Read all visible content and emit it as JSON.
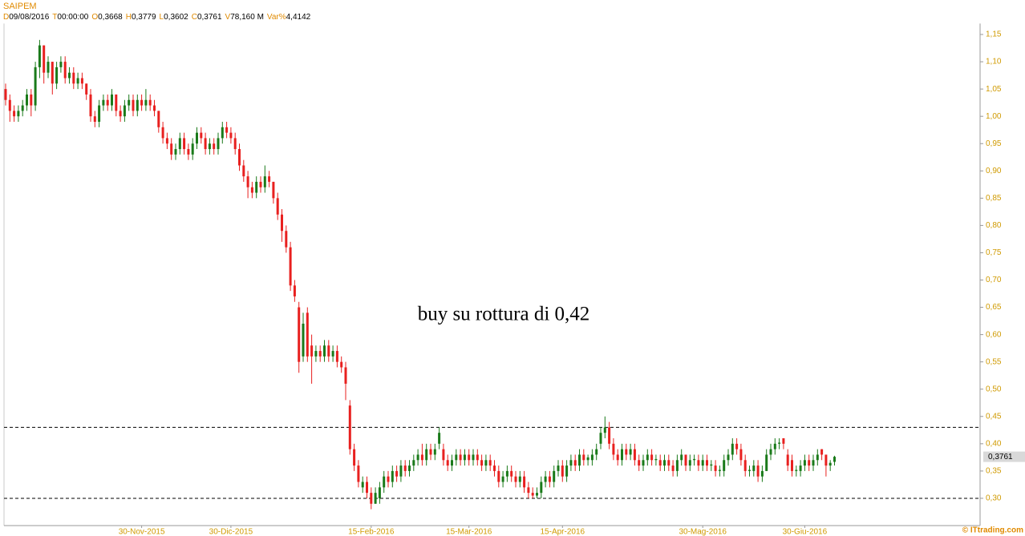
{
  "header": {
    "title": "SAIPEM",
    "info": [
      {
        "key": "D",
        "value": "09/08/2016"
      },
      {
        "key": "T",
        "value": "00:00:00"
      },
      {
        "key": "O",
        "value": "0,3668"
      },
      {
        "key": "H",
        "value": "0,3779"
      },
      {
        "key": "L",
        "value": "0,3602"
      },
      {
        "key": "C",
        "value": "0,3761"
      },
      {
        "key": "V",
        "value": "78,160 M"
      },
      {
        "key": "Var%",
        "value": "4,4142"
      }
    ]
  },
  "chart_data": {
    "type": "candlestick",
    "up_color": "#1a7a1a",
    "down_color": "#e8201f",
    "annotation": "buy su rottura di 0,42",
    "source": "© ITtrading.com",
    "hlines": [
      0.43,
      0.3
    ],
    "last_price": {
      "value": 0.3761,
      "label": "0,3761"
    },
    "ylim": [
      0.25,
      1.17
    ],
    "yticks": [
      {
        "value": 0.3,
        "label": "0,30"
      },
      {
        "value": 0.35,
        "label": "0,35"
      },
      {
        "value": 0.4,
        "label": "0,40"
      },
      {
        "value": 0.45,
        "label": "0,45"
      },
      {
        "value": 0.5,
        "label": "0,50"
      },
      {
        "value": 0.55,
        "label": "0,55"
      },
      {
        "value": 0.6,
        "label": "0,60"
      },
      {
        "value": 0.65,
        "label": "0,65"
      },
      {
        "value": 0.7,
        "label": "0,70"
      },
      {
        "value": 0.75,
        "label": "0,75"
      },
      {
        "value": 0.8,
        "label": "0,80"
      },
      {
        "value": 0.85,
        "label": "0,85"
      },
      {
        "value": 0.9,
        "label": "0,90"
      },
      {
        "value": 0.95,
        "label": "0,95"
      },
      {
        "value": 1.0,
        "label": "1,00"
      },
      {
        "value": 1.05,
        "label": "1,05"
      },
      {
        "value": 1.1,
        "label": "1,10"
      },
      {
        "value": 1.15,
        "label": "1,15"
      }
    ],
    "categories": [
      null,
      null,
      null,
      null,
      null,
      null,
      null,
      null,
      null,
      null,
      null,
      null,
      null,
      null,
      null,
      null,
      null,
      null,
      null,
      null,
      null,
      null,
      null,
      null,
      null,
      null,
      null,
      null,
      null,
      null,
      null,
      null,
      "30-Nov-2015",
      null,
      null,
      null,
      null,
      null,
      null,
      null,
      null,
      null,
      null,
      null,
      null,
      null,
      null,
      null,
      null,
      null,
      null,
      null,
      null,
      "30-Dic-2015",
      null,
      null,
      null,
      null,
      null,
      null,
      null,
      null,
      null,
      null,
      null,
      null,
      null,
      null,
      null,
      null,
      null,
      null,
      null,
      null,
      null,
      null,
      null,
      null,
      null,
      null,
      null,
      null,
      null,
      null,
      null,
      null,
      "15-Feb-2016",
      null,
      null,
      null,
      null,
      null,
      null,
      null,
      null,
      null,
      null,
      null,
      null,
      null,
      null,
      null,
      null,
      null,
      null,
      null,
      null,
      null,
      null,
      "15-Mar-2016",
      null,
      null,
      null,
      null,
      null,
      null,
      null,
      null,
      null,
      null,
      null,
      null,
      null,
      null,
      null,
      null,
      null,
      null,
      null,
      null,
      null,
      "15-Apr-2016",
      null,
      null,
      null,
      null,
      null,
      null,
      null,
      null,
      null,
      null,
      null,
      null,
      null,
      null,
      null,
      null,
      null,
      null,
      null,
      null,
      null,
      null,
      null,
      null,
      null,
      null,
      null,
      null,
      null,
      null,
      null,
      null,
      "30-Mag-2016",
      null,
      null,
      null,
      null,
      null,
      null,
      null,
      null,
      null,
      null,
      null,
      null,
      null,
      null,
      null,
      null,
      null,
      null,
      null,
      null,
      null,
      null,
      null,
      "30-Giu-2016",
      null,
      null,
      null,
      null,
      null,
      null,
      null
    ],
    "ohlc": [
      [
        1.05,
        1.06,
        1.02,
        1.03
      ],
      [
        1.03,
        1.04,
        0.99,
        1.01
      ],
      [
        1.01,
        1.02,
        0.99,
        1.0
      ],
      [
        1.0,
        1.02,
        0.99,
        1.01
      ],
      [
        1.01,
        1.03,
        1.0,
        1.02
      ],
      [
        1.02,
        1.05,
        1.01,
        1.04
      ],
      [
        1.04,
        1.05,
        1.0,
        1.02
      ],
      [
        1.02,
        1.1,
        1.01,
        1.09
      ],
      [
        1.09,
        1.14,
        1.07,
        1.13
      ],
      [
        1.13,
        1.13,
        1.06,
        1.08
      ],
      [
        1.08,
        1.11,
        1.07,
        1.1
      ],
      [
        1.1,
        1.1,
        1.04,
        1.06
      ],
      [
        1.06,
        1.1,
        1.05,
        1.09
      ],
      [
        1.09,
        1.11,
        1.08,
        1.1
      ],
      [
        1.1,
        1.11,
        1.06,
        1.07
      ],
      [
        1.07,
        1.09,
        1.06,
        1.08
      ],
      [
        1.08,
        1.09,
        1.05,
        1.06
      ],
      [
        1.06,
        1.08,
        1.05,
        1.07
      ],
      [
        1.07,
        1.08,
        1.05,
        1.06
      ],
      [
        1.06,
        1.06,
        1.03,
        1.04
      ],
      [
        1.04,
        1.05,
        0.99,
        1.0
      ],
      [
        1.0,
        1.01,
        0.98,
        0.99
      ],
      [
        0.99,
        1.03,
        0.98,
        1.02
      ],
      [
        1.02,
        1.04,
        1.01,
        1.03
      ],
      [
        1.03,
        1.04,
        1.01,
        1.02
      ],
      [
        1.02,
        1.05,
        1.01,
        1.04
      ],
      [
        1.04,
        1.04,
        1.0,
        1.01
      ],
      [
        1.01,
        1.02,
        0.99,
        1.0
      ],
      [
        1.0,
        1.03,
        0.99,
        1.02
      ],
      [
        1.02,
        1.04,
        1.01,
        1.03
      ],
      [
        1.03,
        1.04,
        1.0,
        1.01
      ],
      [
        1.01,
        1.04,
        1.0,
        1.03
      ],
      [
        1.03,
        1.04,
        1.01,
        1.02
      ],
      [
        1.02,
        1.05,
        1.01,
        1.03
      ],
      [
        1.03,
        1.04,
        1.01,
        1.02
      ],
      [
        1.02,
        1.03,
        1.0,
        1.01
      ],
      [
        1.01,
        1.01,
        0.97,
        0.98
      ],
      [
        0.98,
        0.99,
        0.95,
        0.96
      ],
      [
        0.96,
        0.97,
        0.94,
        0.95
      ],
      [
        0.95,
        0.96,
        0.92,
        0.93
      ],
      [
        0.93,
        0.95,
        0.92,
        0.94
      ],
      [
        0.94,
        0.97,
        0.93,
        0.96
      ],
      [
        0.96,
        0.97,
        0.93,
        0.94
      ],
      [
        0.94,
        0.95,
        0.92,
        0.93
      ],
      [
        0.93,
        0.96,
        0.92,
        0.95
      ],
      [
        0.95,
        0.98,
        0.94,
        0.97
      ],
      [
        0.97,
        0.98,
        0.95,
        0.96
      ],
      [
        0.96,
        0.97,
        0.93,
        0.94
      ],
      [
        0.94,
        0.96,
        0.93,
        0.95
      ],
      [
        0.95,
        0.96,
        0.93,
        0.94
      ],
      [
        0.94,
        0.97,
        0.93,
        0.96
      ],
      [
        0.96,
        0.99,
        0.95,
        0.98
      ],
      [
        0.98,
        0.99,
        0.96,
        0.97
      ],
      [
        0.97,
        0.98,
        0.95,
        0.96
      ],
      [
        0.96,
        0.97,
        0.93,
        0.94
      ],
      [
        0.94,
        0.95,
        0.9,
        0.91
      ],
      [
        0.91,
        0.92,
        0.88,
        0.89
      ],
      [
        0.89,
        0.9,
        0.85,
        0.87
      ],
      [
        0.87,
        0.88,
        0.85,
        0.86
      ],
      [
        0.86,
        0.89,
        0.85,
        0.88
      ],
      [
        0.88,
        0.89,
        0.86,
        0.87
      ],
      [
        0.87,
        0.91,
        0.86,
        0.89
      ],
      [
        0.89,
        0.9,
        0.87,
        0.88
      ],
      [
        0.88,
        0.88,
        0.84,
        0.85
      ],
      [
        0.85,
        0.86,
        0.81,
        0.82
      ],
      [
        0.82,
        0.83,
        0.77,
        0.79
      ],
      [
        0.79,
        0.8,
        0.75,
        0.76
      ],
      [
        0.76,
        0.77,
        0.68,
        0.69
      ],
      [
        0.69,
        0.7,
        0.66,
        0.67
      ],
      [
        0.65,
        0.66,
        0.53,
        0.55
      ],
      [
        0.56,
        0.64,
        0.55,
        0.62
      ],
      [
        0.64,
        0.65,
        0.55,
        0.56
      ],
      [
        0.58,
        0.6,
        0.51,
        0.56
      ],
      [
        0.56,
        0.58,
        0.55,
        0.57
      ],
      [
        0.57,
        0.58,
        0.55,
        0.56
      ],
      [
        0.56,
        0.59,
        0.55,
        0.58
      ],
      [
        0.58,
        0.59,
        0.55,
        0.56
      ],
      [
        0.56,
        0.58,
        0.55,
        0.57
      ],
      [
        0.57,
        0.58,
        0.54,
        0.55
      ],
      [
        0.55,
        0.56,
        0.53,
        0.54
      ],
      [
        0.54,
        0.55,
        0.48,
        0.51
      ],
      [
        0.47,
        0.48,
        0.38,
        0.39
      ],
      [
        0.39,
        0.4,
        0.35,
        0.36
      ],
      [
        0.36,
        0.37,
        0.32,
        0.33
      ],
      [
        0.32,
        0.34,
        0.31,
        0.33
      ],
      [
        0.33,
        0.34,
        0.3,
        0.31
      ],
      [
        0.31,
        0.32,
        0.28,
        0.29
      ],
      [
        0.29,
        0.32,
        0.29,
        0.31
      ],
      [
        0.3,
        0.33,
        0.29,
        0.32
      ],
      [
        0.32,
        0.35,
        0.31,
        0.34
      ],
      [
        0.34,
        0.35,
        0.32,
        0.33
      ],
      [
        0.33,
        0.36,
        0.32,
        0.35
      ],
      [
        0.35,
        0.36,
        0.33,
        0.34
      ],
      [
        0.34,
        0.37,
        0.33,
        0.36
      ],
      [
        0.36,
        0.37,
        0.34,
        0.35
      ],
      [
        0.35,
        0.37,
        0.34,
        0.36
      ],
      [
        0.36,
        0.38,
        0.35,
        0.37
      ],
      [
        0.37,
        0.39,
        0.36,
        0.38
      ],
      [
        0.38,
        0.4,
        0.36,
        0.37
      ],
      [
        0.37,
        0.4,
        0.36,
        0.39
      ],
      [
        0.39,
        0.4,
        0.37,
        0.38
      ],
      [
        0.38,
        0.4,
        0.37,
        0.39
      ],
      [
        0.4,
        0.43,
        0.39,
        0.42
      ],
      [
        0.39,
        0.4,
        0.36,
        0.37
      ],
      [
        0.37,
        0.38,
        0.35,
        0.36
      ],
      [
        0.36,
        0.38,
        0.35,
        0.37
      ],
      [
        0.37,
        0.39,
        0.36,
        0.38
      ],
      [
        0.38,
        0.39,
        0.36,
        0.37
      ],
      [
        0.37,
        0.39,
        0.36,
        0.38
      ],
      [
        0.38,
        0.39,
        0.36,
        0.37
      ],
      [
        0.37,
        0.39,
        0.36,
        0.38
      ],
      [
        0.38,
        0.39,
        0.36,
        0.37
      ],
      [
        0.37,
        0.38,
        0.35,
        0.36
      ],
      [
        0.36,
        0.38,
        0.35,
        0.37
      ],
      [
        0.37,
        0.38,
        0.35,
        0.36
      ],
      [
        0.36,
        0.37,
        0.34,
        0.35
      ],
      [
        0.35,
        0.36,
        0.32,
        0.33
      ],
      [
        0.33,
        0.35,
        0.32,
        0.34
      ],
      [
        0.34,
        0.36,
        0.33,
        0.35
      ],
      [
        0.35,
        0.36,
        0.33,
        0.34
      ],
      [
        0.34,
        0.35,
        0.32,
        0.33
      ],
      [
        0.33,
        0.35,
        0.32,
        0.34
      ],
      [
        0.34,
        0.35,
        0.31,
        0.32
      ],
      [
        0.32,
        0.33,
        0.3,
        0.31
      ],
      [
        0.31,
        0.32,
        0.3,
        0.305
      ],
      [
        0.305,
        0.32,
        0.3,
        0.31
      ],
      [
        0.31,
        0.34,
        0.3,
        0.33
      ],
      [
        0.33,
        0.35,
        0.32,
        0.34
      ],
      [
        0.34,
        0.35,
        0.32,
        0.33
      ],
      [
        0.33,
        0.36,
        0.32,
        0.35
      ],
      [
        0.35,
        0.37,
        0.34,
        0.36
      ],
      [
        0.36,
        0.37,
        0.33,
        0.34
      ],
      [
        0.34,
        0.37,
        0.33,
        0.36
      ],
      [
        0.36,
        0.38,
        0.35,
        0.37
      ],
      [
        0.37,
        0.38,
        0.35,
        0.36
      ],
      [
        0.36,
        0.39,
        0.35,
        0.38
      ],
      [
        0.38,
        0.39,
        0.36,
        0.37
      ],
      [
        0.37,
        0.38,
        0.36,
        0.375
      ],
      [
        0.37,
        0.39,
        0.36,
        0.38
      ],
      [
        0.38,
        0.4,
        0.37,
        0.39
      ],
      [
        0.4,
        0.43,
        0.39,
        0.42
      ],
      [
        0.42,
        0.45,
        0.41,
        0.43
      ],
      [
        0.43,
        0.44,
        0.39,
        0.4
      ],
      [
        0.4,
        0.41,
        0.37,
        0.38
      ],
      [
        0.38,
        0.39,
        0.36,
        0.37
      ],
      [
        0.37,
        0.4,
        0.36,
        0.39
      ],
      [
        0.39,
        0.4,
        0.37,
        0.38
      ],
      [
        0.38,
        0.4,
        0.37,
        0.39
      ],
      [
        0.39,
        0.4,
        0.36,
        0.37
      ],
      [
        0.37,
        0.38,
        0.35,
        0.36
      ],
      [
        0.36,
        0.38,
        0.35,
        0.37
      ],
      [
        0.37,
        0.39,
        0.36,
        0.38
      ],
      [
        0.38,
        0.39,
        0.36,
        0.37
      ],
      [
        0.37,
        0.38,
        0.36,
        0.372
      ],
      [
        0.37,
        0.38,
        0.35,
        0.36
      ],
      [
        0.36,
        0.38,
        0.35,
        0.37
      ],
      [
        0.37,
        0.38,
        0.35,
        0.36
      ],
      [
        0.36,
        0.37,
        0.34,
        0.35
      ],
      [
        0.35,
        0.38,
        0.34,
        0.37
      ],
      [
        0.37,
        0.39,
        0.36,
        0.38
      ],
      [
        0.38,
        0.38,
        0.35,
        0.36
      ],
      [
        0.36,
        0.38,
        0.35,
        0.37
      ],
      [
        0.37,
        0.38,
        0.36,
        0.372
      ],
      [
        0.37,
        0.38,
        0.35,
        0.36
      ],
      [
        0.36,
        0.38,
        0.35,
        0.37
      ],
      [
        0.37,
        0.38,
        0.35,
        0.36
      ],
      [
        0.36,
        0.37,
        0.35,
        0.362
      ],
      [
        0.36,
        0.37,
        0.34,
        0.35
      ],
      [
        0.35,
        0.36,
        0.34,
        0.352
      ],
      [
        0.35,
        0.38,
        0.34,
        0.37
      ],
      [
        0.37,
        0.39,
        0.36,
        0.38
      ],
      [
        0.38,
        0.41,
        0.37,
        0.4
      ],
      [
        0.4,
        0.41,
        0.38,
        0.39
      ],
      [
        0.39,
        0.4,
        0.36,
        0.37
      ],
      [
        0.37,
        0.38,
        0.34,
        0.35
      ],
      [
        0.35,
        0.36,
        0.34,
        0.352
      ],
      [
        0.35,
        0.37,
        0.34,
        0.36
      ],
      [
        0.36,
        0.37,
        0.33,
        0.34
      ],
      [
        0.34,
        0.36,
        0.33,
        0.35
      ],
      [
        0.35,
        0.39,
        0.35,
        0.38
      ],
      [
        0.38,
        0.4,
        0.37,
        0.39
      ],
      [
        0.39,
        0.41,
        0.38,
        0.4
      ],
      [
        0.4,
        0.41,
        0.39,
        0.402
      ],
      [
        0.41,
        0.41,
        0.39,
        0.4
      ],
      [
        0.38,
        0.39,
        0.35,
        0.36
      ],
      [
        0.37,
        0.38,
        0.34,
        0.35
      ],
      [
        0.35,
        0.36,
        0.34,
        0.352
      ],
      [
        0.35,
        0.37,
        0.34,
        0.36
      ],
      [
        0.36,
        0.38,
        0.35,
        0.37
      ],
      [
        0.37,
        0.38,
        0.35,
        0.36
      ],
      [
        0.36,
        0.38,
        0.35,
        0.37
      ],
      [
        0.37,
        0.39,
        0.36,
        0.38
      ],
      [
        0.39,
        0.39,
        0.37,
        0.38
      ],
      [
        0.38,
        0.38,
        0.34,
        0.36
      ],
      [
        0.36,
        0.37,
        0.35,
        0.365
      ],
      [
        0.3668,
        0.3779,
        0.3602,
        0.3761
      ]
    ]
  }
}
